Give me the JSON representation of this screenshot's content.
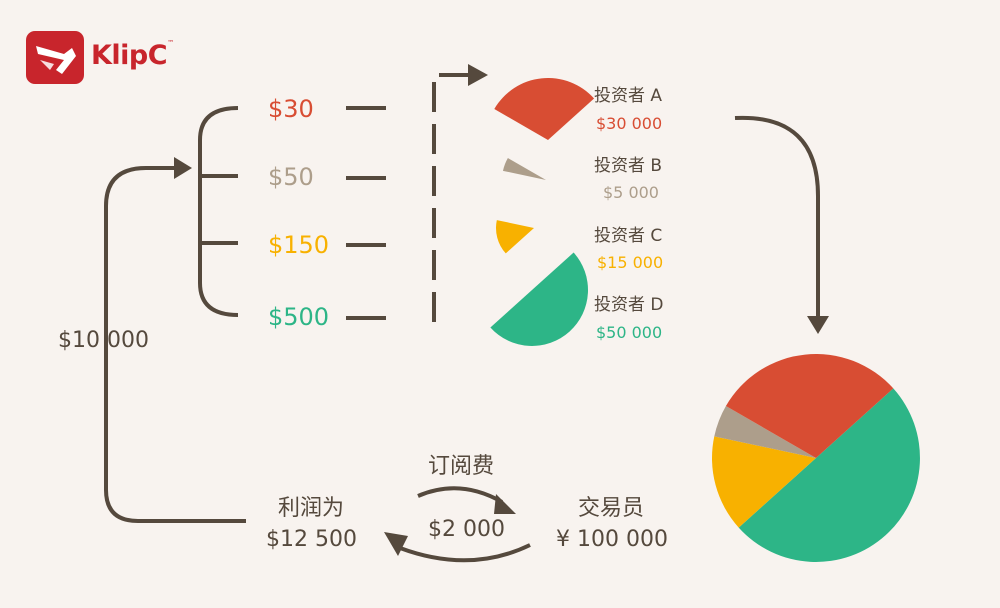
{
  "brand": {
    "name": "KlipC",
    "trademark": "™",
    "color": "#c8252c"
  },
  "colors": {
    "red": "#d84d33",
    "taupe": "#ad9e8b",
    "gold": "#f8b100",
    "green": "#2db587",
    "dark": "#55493d"
  },
  "amounts": [
    {
      "label": "$30",
      "color": "#d84d33"
    },
    {
      "label": "$50",
      "color": "#ad9e8b"
    },
    {
      "label": "$150",
      "color": "#f8b100"
    },
    {
      "label": "$500",
      "color": "#2db587"
    }
  ],
  "investors": [
    {
      "name": "投资者  A",
      "value": "$30 000",
      "amount": 30000,
      "color": "#d84d33"
    },
    {
      "name": "投资者  B",
      "value": "$5 000",
      "amount": 5000,
      "color": "#ad9e8b"
    },
    {
      "name": "投资者  C",
      "value": "$15 000",
      "amount": 15000,
      "color": "#f8b100"
    },
    {
      "name": "投资者  D",
      "value": "$50 000",
      "amount": 50000,
      "color": "#2db587"
    }
  ],
  "cycle": {
    "loop_amount": "$10 000",
    "profit_label": "利润为",
    "profit_value": "$12 500",
    "fee_label": "订阅费",
    "fee_value": "$2 000",
    "trader_label": "交易员",
    "trader_value": "¥ 100 000"
  }
}
